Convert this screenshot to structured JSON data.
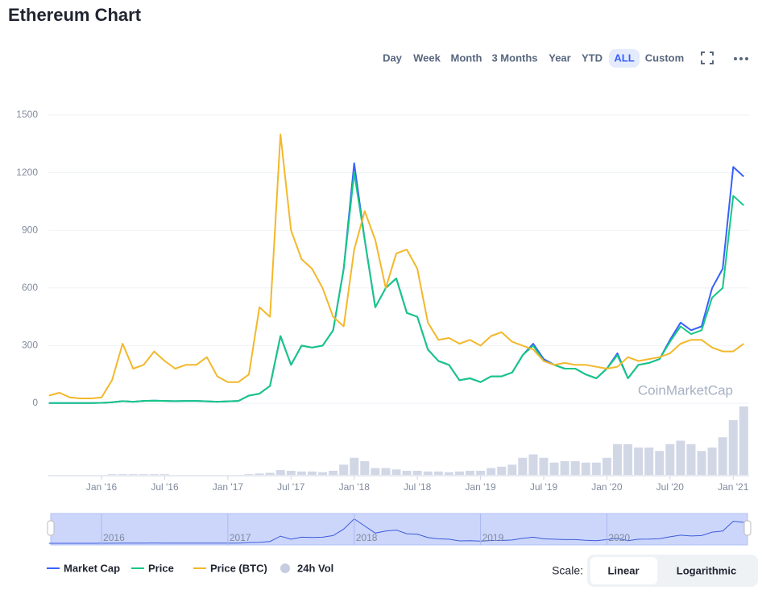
{
  "title": "Ethereum Chart",
  "range_buttons": [
    "Day",
    "Week",
    "Month",
    "3 Months",
    "Year",
    "YTD",
    "ALL",
    "Custom"
  ],
  "active_range": "ALL",
  "chart_data": {
    "type": "line",
    "watermark": "CoinMarketCap",
    "x": [
      "2015-08",
      "2015-09",
      "2015-10",
      "2015-11",
      "2015-12",
      "2016-01",
      "2016-02",
      "2016-03",
      "2016-04",
      "2016-05",
      "2016-06",
      "2016-07",
      "2016-08",
      "2016-09",
      "2016-10",
      "2016-11",
      "2016-12",
      "2017-01",
      "2017-02",
      "2017-03",
      "2017-04",
      "2017-05",
      "2017-06",
      "2017-07",
      "2017-08",
      "2017-09",
      "2017-10",
      "2017-11",
      "2017-12",
      "2018-01",
      "2018-02",
      "2018-03",
      "2018-04",
      "2018-05",
      "2018-06",
      "2018-07",
      "2018-08",
      "2018-09",
      "2018-10",
      "2018-11",
      "2018-12",
      "2019-01",
      "2019-02",
      "2019-03",
      "2019-04",
      "2019-05",
      "2019-06",
      "2019-07",
      "2019-08",
      "2019-09",
      "2019-10",
      "2019-11",
      "2019-12",
      "2020-01",
      "2020-02",
      "2020-03",
      "2020-04",
      "2020-05",
      "2020-06",
      "2020-07",
      "2020-08",
      "2020-09",
      "2020-10",
      "2020-11",
      "2020-12",
      "2021-01",
      "2021-02"
    ],
    "xticks": [
      {
        "value": "2016-01",
        "label": "Jan '16"
      },
      {
        "value": "2016-07",
        "label": "Jul '16"
      },
      {
        "value": "2017-01",
        "label": "Jan '17"
      },
      {
        "value": "2017-07",
        "label": "Jul '17"
      },
      {
        "value": "2018-01",
        "label": "Jan '18"
      },
      {
        "value": "2018-07",
        "label": "Jul '18"
      },
      {
        "value": "2019-01",
        "label": "Jan '19"
      },
      {
        "value": "2019-07",
        "label": "Jul '19"
      },
      {
        "value": "2020-01",
        "label": "Jan '20"
      },
      {
        "value": "2020-07",
        "label": "Jul '20"
      },
      {
        "value": "2021-01",
        "label": "Jan '21"
      }
    ],
    "ylim": [
      0,
      1500
    ],
    "yticks": [
      0,
      300,
      600,
      900,
      1200,
      1500
    ],
    "y2lim": [
      0,
      100
    ],
    "grid": true,
    "series": [
      {
        "name": "Market Cap",
        "color": "#3861fb",
        "values": [
          1,
          1,
          1,
          1,
          1,
          2,
          5,
          11,
          8,
          12,
          14,
          12,
          11,
          12,
          12,
          10,
          8,
          10,
          12,
          40,
          50,
          90,
          350,
          200,
          300,
          290,
          300,
          380,
          700,
          1250,
          850,
          500,
          600,
          650,
          470,
          450,
          280,
          220,
          200,
          120,
          130,
          110,
          140,
          140,
          160,
          250,
          310,
          230,
          200,
          180,
          180,
          150,
          130,
          180,
          260,
          130,
          200,
          210,
          230,
          330,
          420,
          380,
          400,
          600,
          700,
          1230,
          1180
        ]
      },
      {
        "name": "Price",
        "color": "#16c784",
        "values": [
          1,
          1,
          1,
          1,
          1,
          2,
          5,
          11,
          8,
          12,
          14,
          12,
          11,
          12,
          12,
          10,
          8,
          10,
          12,
          40,
          50,
          90,
          350,
          200,
          300,
          290,
          300,
          380,
          700,
          1200,
          850,
          500,
          600,
          650,
          470,
          450,
          280,
          220,
          200,
          120,
          130,
          110,
          140,
          140,
          160,
          250,
          300,
          220,
          200,
          180,
          180,
          150,
          130,
          180,
          250,
          130,
          200,
          210,
          230,
          320,
          400,
          360,
          380,
          550,
          600,
          1080,
          1030
        ]
      },
      {
        "name": "Price (BTC)",
        "color": "#f3b82b",
        "values": [
          40,
          55,
          30,
          25,
          25,
          30,
          120,
          310,
          180,
          200,
          270,
          220,
          180,
          200,
          200,
          240,
          140,
          110,
          110,
          150,
          500,
          450,
          1400,
          900,
          750,
          700,
          600,
          450,
          400,
          800,
          1000,
          850,
          600,
          780,
          800,
          700,
          420,
          330,
          340,
          310,
          330,
          300,
          350,
          370,
          320,
          300,
          280,
          220,
          200,
          210,
          200,
          200,
          190,
          180,
          190,
          240,
          220,
          230,
          240,
          260,
          310,
          330,
          330,
          290,
          270,
          270,
          310
        ]
      },
      {
        "name": "24h Vol",
        "color": "#c7cde0",
        "axis": "y2",
        "values": [
          0,
          0,
          0,
          0,
          0,
          0,
          1,
          1,
          1,
          1,
          1,
          1,
          0,
          0,
          0,
          0,
          0,
          0,
          0,
          1,
          2,
          3,
          7,
          6,
          5,
          5,
          4,
          6,
          15,
          25,
          20,
          10,
          10,
          8,
          6,
          6,
          5,
          5,
          4,
          5,
          6,
          6,
          10,
          12,
          15,
          25,
          30,
          25,
          18,
          20,
          20,
          18,
          18,
          25,
          45,
          45,
          40,
          40,
          35,
          45,
          50,
          45,
          35,
          40,
          55,
          80,
          100
        ]
      }
    ]
  },
  "navigator_labels": [
    "2016",
    "2017",
    "2018",
    "2019",
    "2020"
  ],
  "scale_label": "Scale:",
  "scale_options": [
    "Linear",
    "Logarithmic"
  ]
}
